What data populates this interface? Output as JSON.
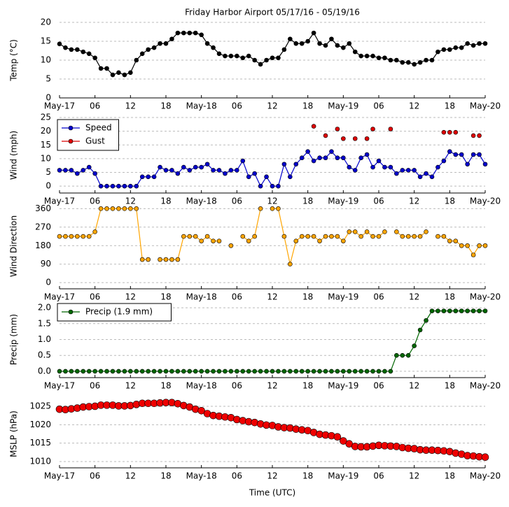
{
  "chart_data": [
    {
      "type": "line",
      "title": "Friday Harbor Airport 05/17/16 - 05/19/16",
      "ylabel": "Temp (°C)",
      "grid": true,
      "x": [
        0,
        1,
        2,
        3,
        4,
        5,
        6,
        7,
        8,
        9,
        10,
        11,
        12,
        13,
        14,
        15,
        16,
        17,
        18,
        19,
        20,
        21,
        22,
        23,
        24,
        25,
        26,
        27,
        28,
        29,
        30,
        31,
        32,
        33,
        34,
        35,
        36,
        37,
        38,
        39,
        40,
        41,
        42,
        43,
        44,
        45,
        46,
        47,
        48,
        49,
        50,
        51,
        52,
        53,
        54,
        55,
        56,
        57,
        58,
        59,
        60,
        61,
        62,
        63,
        64,
        65,
        66,
        67,
        68,
        69,
        70,
        71,
        72
      ],
      "values": [
        14.3,
        13.3,
        12.8,
        12.8,
        12.2,
        11.7,
        10.6,
        7.8,
        7.8,
        6.1,
        6.7,
        6.1,
        6.7,
        10,
        11.7,
        12.8,
        13.3,
        14.4,
        14.4,
        15.6,
        17.2,
        17.2,
        17.2,
        17.2,
        16.7,
        14.4,
        13.3,
        11.7,
        11.1,
        11.1,
        11.1,
        10.6,
        11.1,
        10,
        8.9,
        10,
        10.6,
        10.6,
        12.8,
        15.6,
        14.4,
        14.4,
        15,
        17.2,
        14.4,
        13.9,
        15.6,
        13.9,
        13.3,
        14.4,
        12.2,
        11.1,
        11.1,
        11.1,
        10.6,
        10.6,
        10,
        10,
        9.4,
        9.4,
        8.9,
        9.4,
        10,
        10,
        12.2,
        12.8,
        12.8,
        13.3,
        13.3,
        14.4,
        13.9,
        14.4,
        14.4
      ],
      "color": "#000000",
      "marker_size": 3,
      "xlim": [
        0,
        72
      ],
      "xticks": [
        {
          "value": 0,
          "label": "May-17"
        },
        {
          "value": 6,
          "label": "06"
        },
        {
          "value": 12,
          "label": "12"
        },
        {
          "value": 18,
          "label": "18"
        },
        {
          "value": 24,
          "label": "May-18"
        },
        {
          "value": 30,
          "label": "06"
        },
        {
          "value": 36,
          "label": "12"
        },
        {
          "value": 42,
          "label": "18"
        },
        {
          "value": 48,
          "label": "May-19"
        },
        {
          "value": 54,
          "label": "06"
        },
        {
          "value": 60,
          "label": "12"
        },
        {
          "value": 66,
          "label": "18"
        },
        {
          "value": 72,
          "label": "May-20"
        }
      ],
      "ylim": [
        0,
        20
      ],
      "yticks": [
        0,
        5,
        10,
        15,
        20
      ]
    },
    {
      "type": "line",
      "ylabel": "Wind (mph)",
      "grid": true,
      "legend": "upper left",
      "x": [
        0,
        1,
        2,
        3,
        4,
        5,
        6,
        7,
        8,
        9,
        10,
        11,
        12,
        13,
        14,
        15,
        16,
        17,
        18,
        19,
        20,
        21,
        22,
        23,
        24,
        25,
        26,
        27,
        28,
        29,
        30,
        31,
        32,
        33,
        34,
        35,
        36,
        37,
        38,
        39,
        40,
        41,
        42,
        43,
        44,
        45,
        46,
        47,
        48,
        49,
        50,
        51,
        52,
        53,
        54,
        55,
        56,
        57,
        58,
        59,
        60,
        61,
        62,
        63,
        64,
        65,
        66,
        67,
        68,
        69,
        70,
        71,
        72
      ],
      "series": [
        {
          "name": "Speed",
          "color": "#0000cc",
          "marker_size": 3,
          "line": true,
          "values": [
            5.8,
            5.8,
            5.8,
            4.6,
            5.8,
            6.9,
            4.6,
            0,
            0,
            0,
            0,
            0,
            0,
            0,
            3.4,
            3.4,
            3.4,
            6.9,
            5.8,
            5.8,
            4.6,
            6.9,
            5.8,
            6.9,
            6.9,
            8,
            5.8,
            5.8,
            4.6,
            5.8,
            5.8,
            9.2,
            3.4,
            4.6,
            0,
            3.4,
            0,
            0,
            8,
            3.4,
            8,
            10.3,
            12.6,
            9.2,
            10.3,
            10.3,
            12.6,
            10.3,
            10.3,
            6.9,
            5.8,
            10.3,
            11.5,
            6.9,
            9.2,
            6.9,
            6.9,
            4.6,
            5.8,
            5.8,
            5.8,
            3.4,
            4.6,
            3.4,
            6.9,
            9.2,
            12.6,
            11.5,
            11.5,
            8,
            11.5,
            11.5,
            8
          ]
        },
        {
          "name": "Gust",
          "color": "#dd0000",
          "marker_size": 3,
          "line": false,
          "values": [
            null,
            null,
            null,
            null,
            null,
            null,
            null,
            null,
            null,
            null,
            null,
            null,
            null,
            null,
            null,
            null,
            null,
            null,
            null,
            null,
            null,
            null,
            null,
            null,
            null,
            null,
            null,
            null,
            null,
            null,
            null,
            null,
            null,
            null,
            null,
            null,
            null,
            null,
            null,
            null,
            null,
            null,
            null,
            21.8,
            null,
            18.4,
            null,
            20.8,
            17.3,
            null,
            17.3,
            null,
            17.3,
            20.8,
            null,
            null,
            20.8,
            null,
            null,
            null,
            null,
            null,
            null,
            null,
            null,
            19.6,
            19.6,
            19.6,
            null,
            null,
            18.4,
            18.4,
            null
          ]
        }
      ],
      "xlim": [
        0,
        72
      ],
      "xticks": [
        {
          "value": 0,
          "label": "May-17"
        },
        {
          "value": 6,
          "label": "06"
        },
        {
          "value": 12,
          "label": "12"
        },
        {
          "value": 18,
          "label": "18"
        },
        {
          "value": 24,
          "label": "May-18"
        },
        {
          "value": 30,
          "label": "06"
        },
        {
          "value": 36,
          "label": "12"
        },
        {
          "value": 42,
          "label": "18"
        },
        {
          "value": 48,
          "label": "May-19"
        },
        {
          "value": 54,
          "label": "06"
        },
        {
          "value": 60,
          "label": "12"
        },
        {
          "value": 66,
          "label": "18"
        },
        {
          "value": 72,
          "label": "May-20"
        }
      ],
      "ylim": [
        -2.5,
        25
      ],
      "yticks": [
        0,
        5,
        10,
        15,
        20,
        25
      ]
    },
    {
      "type": "line",
      "ylabel": "Wind Direction",
      "grid": true,
      "x": [
        0,
        1,
        2,
        3,
        4,
        5,
        6,
        7,
        8,
        9,
        10,
        11,
        12,
        13,
        14,
        15,
        16,
        17,
        18,
        19,
        20,
        21,
        22,
        23,
        24,
        25,
        26,
        27,
        28,
        29,
        30,
        31,
        32,
        33,
        34,
        35,
        36,
        37,
        38,
        39,
        40,
        41,
        42,
        43,
        44,
        45,
        46,
        47,
        48,
        49,
        50,
        51,
        52,
        53,
        54,
        55,
        56,
        57,
        58,
        59,
        60,
        61,
        62,
        63,
        64,
        65,
        66,
        67,
        68,
        69,
        70,
        71,
        72
      ],
      "values": [
        225,
        225,
        225,
        225,
        225,
        225,
        247.5,
        360,
        360,
        360,
        360,
        360,
        360,
        360,
        112.5,
        112.5,
        null,
        112.5,
        112.5,
        112.5,
        112.5,
        225,
        225,
        225,
        202.5,
        225,
        202.5,
        202.5,
        null,
        180,
        null,
        225,
        202.5,
        225,
        360,
        null,
        360,
        360,
        225,
        90,
        202.5,
        225,
        225,
        225,
        202.5,
        225,
        225,
        225,
        202.5,
        247.5,
        247.5,
        225,
        247.5,
        225,
        225,
        247.5,
        null,
        247.5,
        225,
        225,
        225,
        225,
        247.5,
        null,
        225,
        225,
        202.5,
        202.5,
        180,
        180,
        135,
        180,
        180
      ],
      "color": "#ffa500",
      "marker_size": 3,
      "xlim": [
        0,
        72
      ],
      "xticks": [
        {
          "value": 0,
          "label": "May-17"
        },
        {
          "value": 6,
          "label": "06"
        },
        {
          "value": 12,
          "label": "12"
        },
        {
          "value": 18,
          "label": "18"
        },
        {
          "value": 24,
          "label": "May-18"
        },
        {
          "value": 30,
          "label": "06"
        },
        {
          "value": 36,
          "label": "12"
        },
        {
          "value": 42,
          "label": "18"
        },
        {
          "value": 48,
          "label": "May-19"
        },
        {
          "value": 54,
          "label": "06"
        },
        {
          "value": 60,
          "label": "12"
        },
        {
          "value": 66,
          "label": "18"
        },
        {
          "value": 72,
          "label": "May-20"
        }
      ],
      "ylim": [
        -30,
        385
      ],
      "yticks": [
        0,
        90,
        180,
        270,
        360
      ]
    },
    {
      "type": "line",
      "ylabel": "Precip (mm)",
      "grid": true,
      "legend": "upper left",
      "x": [
        0,
        1,
        2,
        3,
        4,
        5,
        6,
        7,
        8,
        9,
        10,
        11,
        12,
        13,
        14,
        15,
        16,
        17,
        18,
        19,
        20,
        21,
        22,
        23,
        24,
        25,
        26,
        27,
        28,
        29,
        30,
        31,
        32,
        33,
        34,
        35,
        36,
        37,
        38,
        39,
        40,
        41,
        42,
        43,
        44,
        45,
        46,
        47,
        48,
        49,
        50,
        51,
        52,
        53,
        54,
        55,
        56,
        57,
        58,
        59,
        60,
        61,
        62,
        63,
        64,
        65,
        66,
        67,
        68,
        69,
        70,
        71,
        72
      ],
      "series": [
        {
          "name": "Precip (1.9 mm)",
          "color": "#006600",
          "marker_size": 3,
          "line": true,
          "values": [
            0,
            0,
            0,
            0,
            0,
            0,
            0,
            0,
            0,
            0,
            0,
            0,
            0,
            0,
            0,
            0,
            0,
            0,
            0,
            0,
            0,
            0,
            0,
            0,
            0,
            0,
            0,
            0,
            0,
            0,
            0,
            0,
            0,
            0,
            0,
            0,
            0,
            0,
            0,
            0,
            0,
            0,
            0,
            0,
            0,
            0,
            0,
            0,
            0,
            0,
            0,
            0,
            0,
            0,
            0,
            0,
            0,
            0.5,
            0.5,
            0.5,
            0.8,
            1.3,
            1.6,
            1.9,
            1.9,
            1.9,
            1.9,
            1.9,
            1.9,
            1.9,
            1.9,
            1.9,
            1.9
          ]
        }
      ],
      "xlim": [
        0,
        72
      ],
      "xticks": [
        {
          "value": 0,
          "label": "May-17"
        },
        {
          "value": 6,
          "label": "06"
        },
        {
          "value": 12,
          "label": "12"
        },
        {
          "value": 18,
          "label": "18"
        },
        {
          "value": 24,
          "label": "May-18"
        },
        {
          "value": 30,
          "label": "06"
        },
        {
          "value": 36,
          "label": "12"
        },
        {
          "value": 42,
          "label": "18"
        },
        {
          "value": 48,
          "label": "May-19"
        },
        {
          "value": 54,
          "label": "06"
        },
        {
          "value": 60,
          "label": "12"
        },
        {
          "value": 66,
          "label": "18"
        },
        {
          "value": 72,
          "label": "May-20"
        }
      ],
      "ylim": [
        -0.2,
        2.2
      ],
      "yticks": [
        {
          "value": 0,
          "label": "0.0"
        },
        {
          "value": 0.5,
          "label": "0.5"
        },
        {
          "value": 1,
          "label": "1.0"
        },
        {
          "value": 1.5,
          "label": "1.5"
        },
        {
          "value": 2,
          "label": "2.0"
        }
      ]
    },
    {
      "type": "line",
      "ylabel": "MSLP (hPa)",
      "xlabel": "Time (UTC)",
      "grid": true,
      "x": [
        0,
        1,
        2,
        3,
        4,
        5,
        6,
        7,
        8,
        9,
        10,
        11,
        12,
        13,
        14,
        15,
        16,
        17,
        18,
        19,
        20,
        21,
        22,
        23,
        24,
        25,
        26,
        27,
        28,
        29,
        30,
        31,
        32,
        33,
        34,
        35,
        36,
        37,
        38,
        39,
        40,
        41,
        42,
        43,
        44,
        45,
        46,
        47,
        48,
        49,
        50,
        51,
        52,
        53,
        54,
        55,
        56,
        57,
        58,
        59,
        60,
        61,
        62,
        63,
        64,
        65,
        66,
        67,
        68,
        69,
        70,
        71,
        72
      ],
      "values": [
        1024.2,
        1024.1,
        1024.3,
        1024.5,
        1024.8,
        1024.9,
        1025.0,
        1025.3,
        1025.3,
        1025.3,
        1025.1,
        1025.1,
        1025.2,
        1025.5,
        1025.8,
        1025.8,
        1025.8,
        1025.9,
        1026.0,
        1026.0,
        1025.7,
        1025.2,
        1024.8,
        1024.2,
        1023.8,
        1023.0,
        1022.5,
        1022.3,
        1022.1,
        1021.9,
        1021.4,
        1021.1,
        1020.8,
        1020.6,
        1020.2,
        1019.9,
        1019.8,
        1019.4,
        1019.2,
        1019.1,
        1018.8,
        1018.6,
        1018.4,
        1017.9,
        1017.4,
        1017.2,
        1017.0,
        1016.7,
        1015.6,
        1014.8,
        1014.1,
        1014.0,
        1014.0,
        1014.2,
        1014.4,
        1014.3,
        1014.2,
        1014.1,
        1013.8,
        1013.6,
        1013.5,
        1013.2,
        1013.1,
        1013.1,
        1013.0,
        1012.9,
        1012.7,
        1012.3,
        1012.0,
        1011.6,
        1011.5,
        1011.3,
        1011.2
      ],
      "color": "#ee0000",
      "marker_size": 5,
      "xlim": [
        0,
        72
      ],
      "xticks": [
        {
          "value": 0,
          "label": "May-17"
        },
        {
          "value": 6,
          "label": "06"
        },
        {
          "value": 12,
          "label": "12"
        },
        {
          "value": 18,
          "label": "18"
        },
        {
          "value": 24,
          "label": "May-18"
        },
        {
          "value": 30,
          "label": "06"
        },
        {
          "value": 36,
          "label": "12"
        },
        {
          "value": 42,
          "label": "18"
        },
        {
          "value": 48,
          "label": "May-19"
        },
        {
          "value": 54,
          "label": "06"
        },
        {
          "value": 60,
          "label": "12"
        },
        {
          "value": 66,
          "label": "18"
        },
        {
          "value": 72,
          "label": "May-20"
        }
      ],
      "ylim": [
        1008.3,
        1026.7
      ],
      "yticks": [
        1010,
        1015,
        1020,
        1025
      ]
    }
  ]
}
